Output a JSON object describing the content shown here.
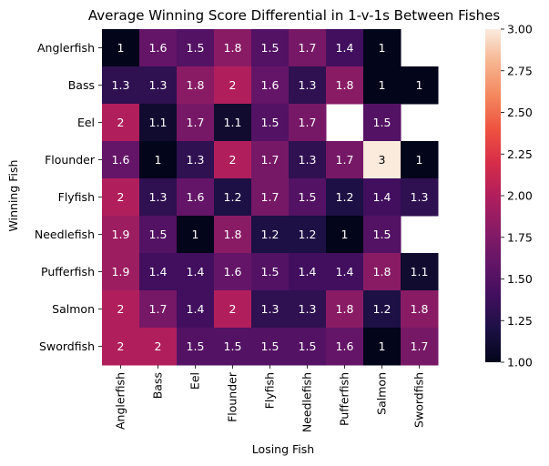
{
  "chart_data": {
    "type": "heatmap",
    "title": "Average Winning Score Differential in 1-v-1s Between Fishes",
    "xlabel": "Losing Fish",
    "ylabel": "Winning Fish",
    "x_categories": [
      "Anglerfish",
      "Bass",
      "Eel",
      "Flounder",
      "Flyfish",
      "Needlefish",
      "Pufferfish",
      "Salmon",
      "Swordfish"
    ],
    "y_categories": [
      "Anglerfish",
      "Bass",
      "Eel",
      "Flounder",
      "Flyfish",
      "Needlefish",
      "Pufferfish",
      "Salmon",
      "Swordfish"
    ],
    "values": [
      [
        1,
        1.6,
        1.5,
        1.8,
        1.5,
        1.7,
        1.4,
        1,
        null
      ],
      [
        1.3,
        1.3,
        1.8,
        2,
        1.6,
        1.3,
        1.8,
        1,
        1
      ],
      [
        2,
        1.1,
        1.7,
        1.1,
        1.5,
        1.7,
        null,
        1.5,
        null
      ],
      [
        1.6,
        1,
        1.3,
        2,
        1.7,
        1.3,
        1.7,
        3,
        1
      ],
      [
        2,
        1.3,
        1.6,
        1.2,
        1.7,
        1.5,
        1.2,
        1.4,
        1.3
      ],
      [
        1.9,
        1.5,
        1,
        1.8,
        1.2,
        1.2,
        1,
        1.5,
        null
      ],
      [
        1.9,
        1.4,
        1.4,
        1.6,
        1.5,
        1.4,
        1.4,
        1.8,
        1.1
      ],
      [
        2,
        1.7,
        1.4,
        2,
        1.3,
        1.3,
        1.8,
        1.2,
        1.8
      ],
      [
        2,
        2,
        1.5,
        1.5,
        1.5,
        1.5,
        1.6,
        1,
        1.7
      ]
    ],
    "colorbar": {
      "min": 1.0,
      "max": 3.0,
      "ticks": [
        "1.00",
        "1.25",
        "1.50",
        "1.75",
        "2.00",
        "2.25",
        "2.50",
        "2.75",
        "3.00"
      ],
      "colormap": "rocket"
    }
  }
}
